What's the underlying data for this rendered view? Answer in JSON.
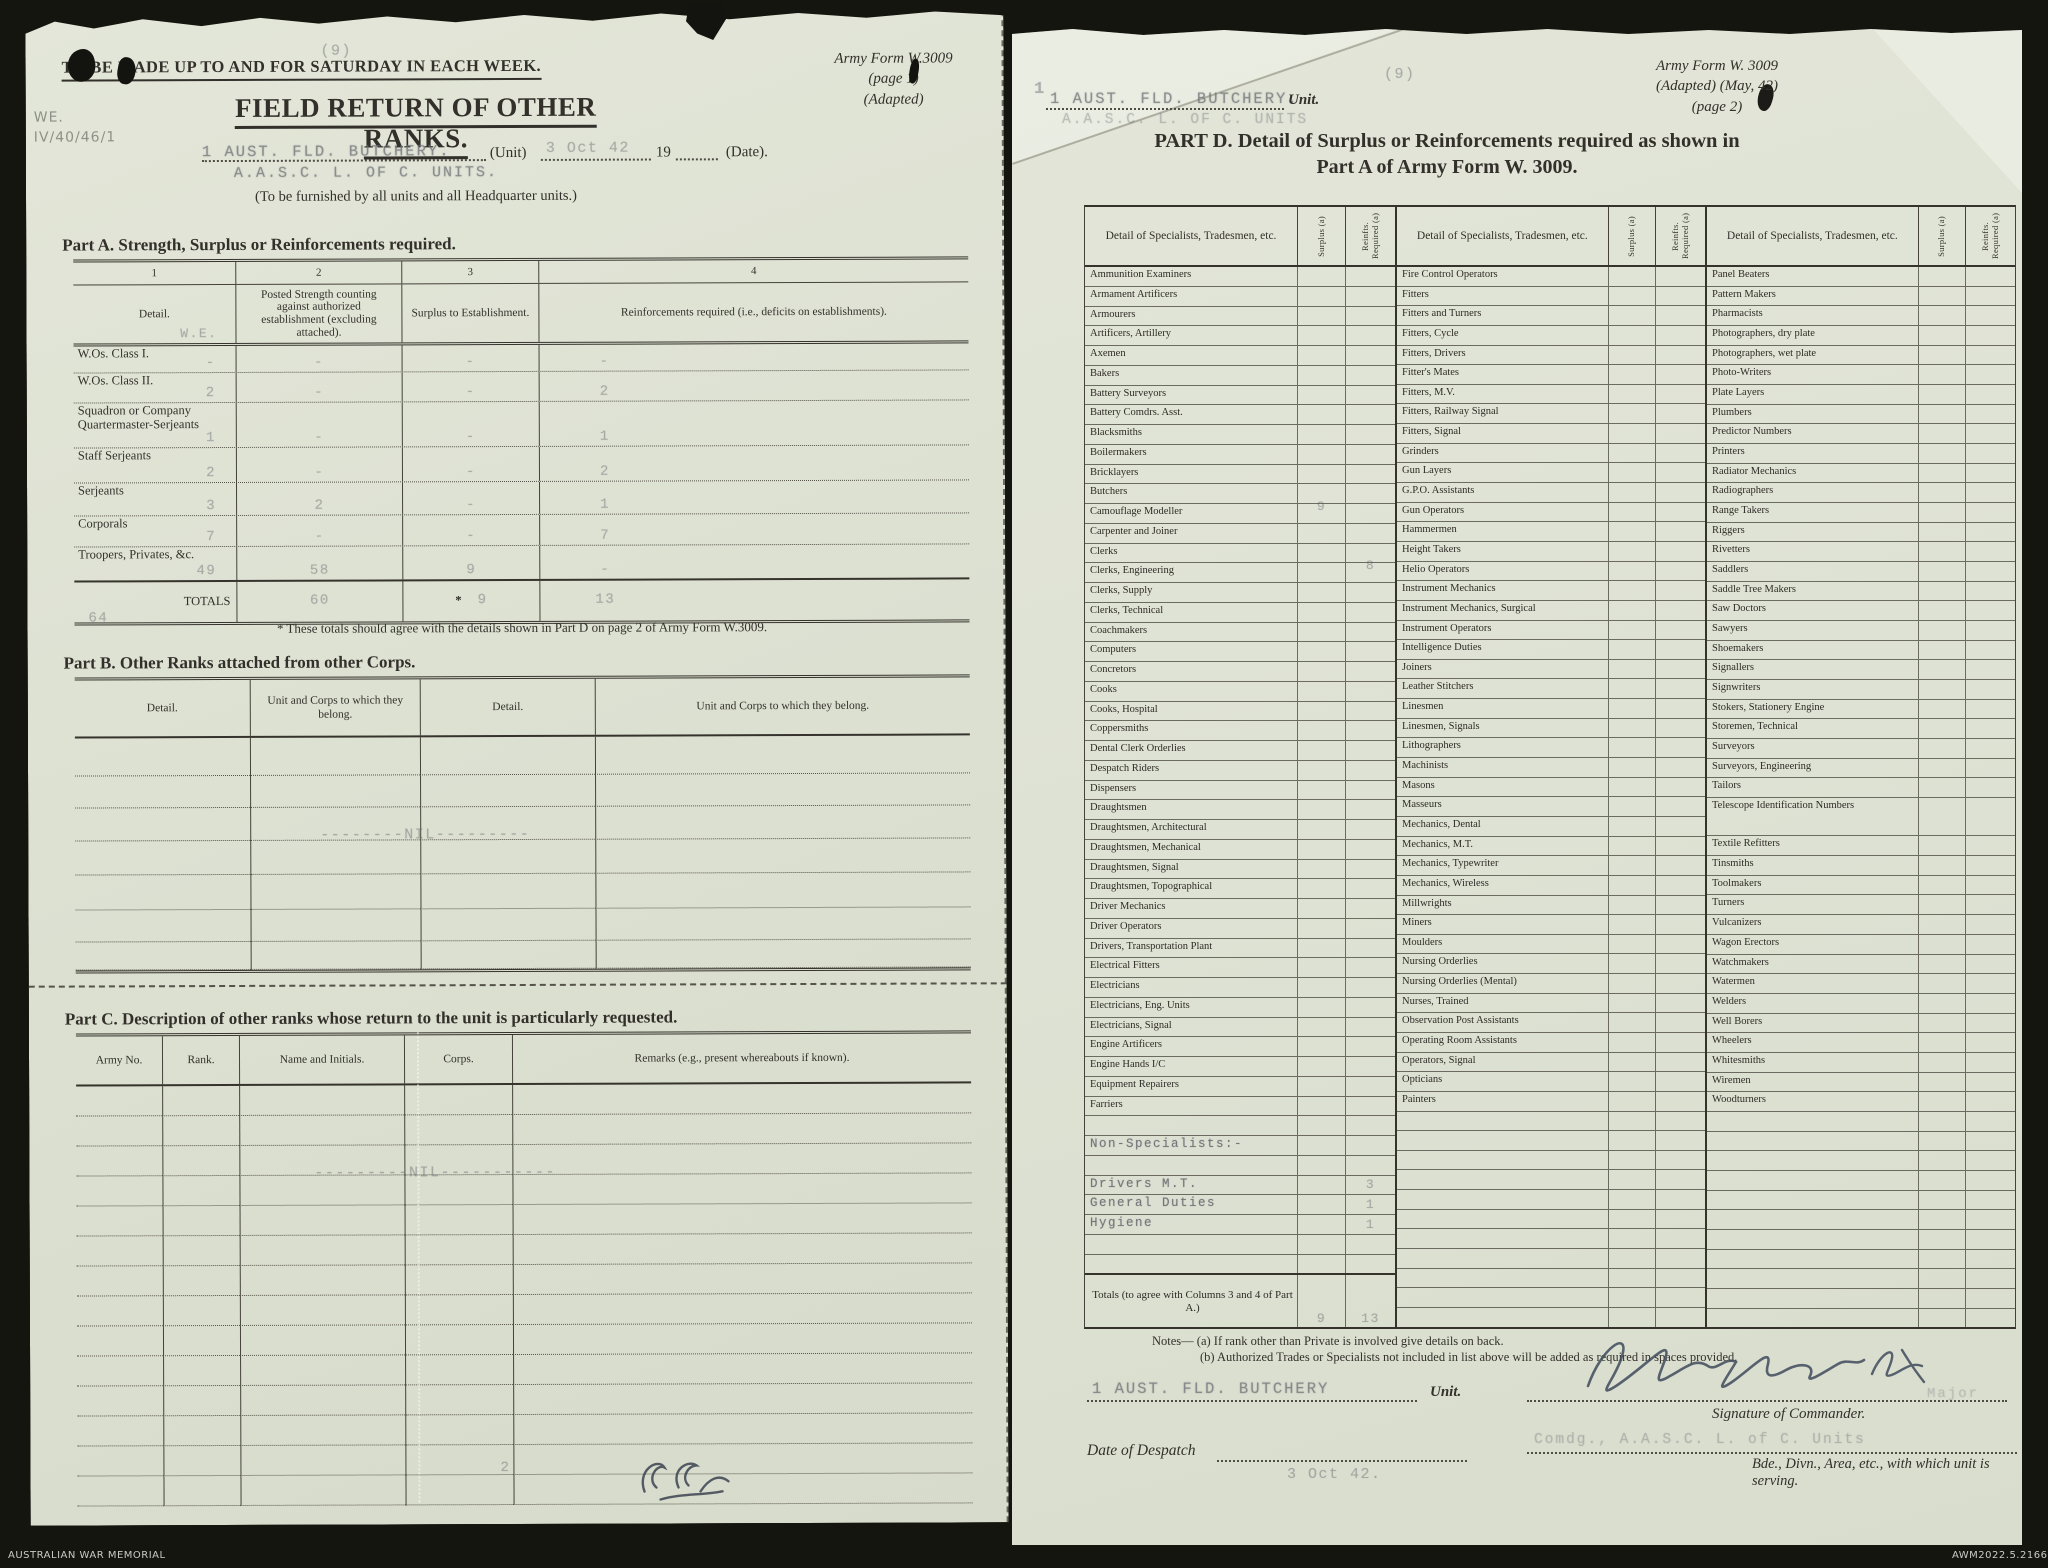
{
  "archive": {
    "label_left": "AUSTRALIAN WAR MEMORIAL",
    "label_right": "AWM2022.5.2166"
  },
  "left_page": {
    "page_number": "(9)",
    "top_instruction": "TO BE MADE UP TO AND FOR SATURDAY IN EACH WEEK.",
    "form_ref": {
      "line1": "Army Form W.3009",
      "line2": "(page 1)",
      "line3": "(Adapted)"
    },
    "pencil_note": {
      "line1": "WE.",
      "line2": "IV/40/46/1"
    },
    "title": "FIELD RETURN OF OTHER RANKS.",
    "unit_line": {
      "unit_stamp": "1 AUST. FLD. BUTCHERY.",
      "unit_stamp2": "A.A.S.C. L. OF C. UNITS.",
      "unit_label": "(Unit)",
      "date_value": "3 Oct 42",
      "year_prefix": "19",
      "date_label": "(Date)."
    },
    "furnish_note": "(To be furnished by all units and all Headquarter units.)",
    "part_a": {
      "title": "Part A.  Strength, Surplus or Reinforcements required.",
      "col_numbers": [
        "1",
        "2",
        "3",
        "4"
      ],
      "headers": [
        "Detail.",
        "Posted Strength counting against authorized establishment (excluding attached).",
        "Surplus to Establishment.",
        "Reinforcements required (i.e., deficits on establishments)."
      ],
      "we_note": "W.E.",
      "rows": [
        {
          "label": "W.Os. Class I.",
          "we": "-",
          "posted": "-",
          "surplus": "-",
          "reinf": "-"
        },
        {
          "label": "W.Os. Class II.",
          "we": "2",
          "posted": "-",
          "surplus": "-",
          "reinf": "2"
        },
        {
          "label": "Squadron or Company Quartermaster-Serjeants",
          "we": "1",
          "posted": "-",
          "surplus": "-",
          "reinf": "1"
        },
        {
          "label": "Staff Serjeants",
          "we": "2",
          "posted": "-",
          "surplus": "-",
          "reinf": "2"
        },
        {
          "label": "Serjeants",
          "we": "3",
          "posted": "2",
          "surplus": "-",
          "reinf": "1"
        },
        {
          "label": "Corporals",
          "we": "7",
          "posted": "-",
          "surplus": "-",
          "reinf": "7"
        },
        {
          "label": "Troopers, Privates, &c.",
          "we": "49",
          "posted": "58",
          "surplus": "9",
          "reinf": "-"
        }
      ],
      "totals": {
        "label": "TOTALS",
        "we": "64",
        "posted": "60",
        "asterisk": "*",
        "surplus": "9",
        "reinf": "13"
      },
      "footnote": "* These totals should agree with the details shown in Part D on page 2 of Army Form W.3009."
    },
    "part_b": {
      "title": "Part B.  Other Ranks attached from other Corps.",
      "headers": [
        "Detail.",
        "Unit and Corps to which they belong.",
        "Detail.",
        "Unit and Corps to which they belong."
      ],
      "nil_text": "--------NIL---------",
      "row_count": 7
    },
    "part_c": {
      "title": "Part C.  Description of other ranks whose return to the unit is particularly requested.",
      "headers": [
        "Army No.",
        "Rank.",
        "Name and Initials.",
        "Corps.",
        "Remarks (e.g., present whereabouts if known)."
      ],
      "nil_text": "---------NIL-----------",
      "row_count": 14
    }
  },
  "right_page": {
    "page_number": "(9)",
    "corner_mark": "1",
    "unit_stamp": "1 AUST. FLD. BUTCHERY.",
    "unit_stamp2": "A.A.S.C. L. OF C. UNITS",
    "unit_label": "Unit.",
    "form_ref": {
      "line1": "Army Form W. 3009",
      "line2": "(Adapted)  (May, 42)",
      "line3": "(page 2)"
    },
    "title_line1": "PART D.  Detail of Surplus or Reinforcements required as shown in",
    "title_line2": "Part A of Army Form W. 3009.",
    "part_d": {
      "group_header": "Detail of Specialists, Tradesmen, etc.",
      "surplus_header": "Surplus (a)",
      "reinfts_header": "Reinfts. Required (a)",
      "totals_label": "Totals (to agree with Columns 3 and 4 of Part A.)",
      "totals": {
        "surplus": "9",
        "reinfts": "13"
      },
      "groups": [
        {
          "rows": [
            "Ammunition Examiners",
            "Armament Artificers",
            "Armourers",
            "Artificers, Artillery",
            "Axemen",
            "Bakers",
            "Battery Surveyors",
            "Battery Comdrs. Asst.",
            "Blacksmiths",
            "Boilermakers",
            "Bricklayers",
            {
              "l": "Butchers",
              "s": "9",
              "off": 1
            },
            "Camouflage Modeller",
            "Carpenter and Joiner",
            {
              "l": "Clerks",
              "r": "8",
              "off": 1
            },
            "Clerks, Engineering",
            "Clerks, Supply",
            "Clerks, Technical",
            "Coachmakers",
            "Computers",
            "Concretors",
            "Cooks",
            "Cooks, Hospital",
            "Coppersmiths",
            "Dental Clerk Orderlies",
            "Despatch Riders",
            "Dispensers",
            "Draughtsmen",
            "Draughtsmen, Architectural",
            "Draughtsmen, Mechanical",
            "Draughtsmen, Signal",
            "Draughtsmen, Topographical",
            "Driver Mechanics",
            "Driver Operators",
            "Drivers, Transportation Plant",
            "Electrical Fitters",
            "Electricians",
            "Electricians, Eng. Units",
            "Electricians, Signal",
            "Engine Artificers",
            "Engine Hands I/C",
            "Equipment Repairers",
            "Farriers",
            "",
            {
              "l": "Non-Specialists:-",
              "t": 1
            },
            "",
            {
              "l": "Drivers M.T.",
              "t": 1,
              "r": "3"
            },
            {
              "l": "General Duties",
              "t": 1,
              "r": "1"
            },
            {
              "l": "Hygiene",
              "t": 1,
              "r": "1"
            },
            "",
            ""
          ]
        },
        {
          "rows": [
            "Fire Control Operators",
            "Fitters",
            "Fitters and Turners",
            "Fitters, Cycle",
            "Fitters, Drivers",
            "Fitter's Mates",
            "Fitters, M.V.",
            "Fitters, Railway Signal",
            "Fitters, Signal",
            "Grinders",
            "Gun Layers",
            "G.P.O. Assistants",
            "Gun Operators",
            "Hammermen",
            "Height Takers",
            "Helio Operators",
            "Instrument Mechanics",
            "Instrument Mechanics, Surgical",
            "Instrument Operators",
            "Intelligence Duties",
            "Joiners",
            "Leather Stitchers",
            "Linesmen",
            "Linesmen, Signals",
            "Lithographers",
            "Machinists",
            "Masons",
            "Masseurs",
            "Mechanics, Dental",
            "Mechanics, M.T.",
            "Mechanics, Typewriter",
            "Mechanics, Wireless",
            "Millwrights",
            "Miners",
            "Moulders",
            "Nursing Orderlies",
            "Nursing Orderlies (Mental)",
            "Nurses, Trained",
            "Observation Post Assistants",
            "Operating Room Assistants",
            "Operators, Signal",
            "Opticians",
            "Painters",
            "",
            "",
            "",
            "",
            "",
            "",
            "",
            "",
            "",
            "",
            ""
          ]
        },
        {
          "rows": [
            "Panel Beaters",
            "Pattern Makers",
            "Pharmacists",
            "Photographers, dry plate",
            "Photographers, wet plate",
            "Photo-Writers",
            "Plate Layers",
            "Plumbers",
            "Predictor Numbers",
            "Printers",
            "Radiator Mechanics",
            "Radiographers",
            "Range Takers",
            "Riggers",
            "Rivetters",
            "Saddlers",
            "Saddle Tree Makers",
            "Saw Doctors",
            "Sawyers",
            "Shoemakers",
            "Signallers",
            "Signwriters",
            "Stokers, Stationery Engine",
            "Storemen, Technical",
            "Surveyors",
            "Surveyors, Engineering",
            "Tailors",
            {
              "l": "Telescope Identification Numbers",
              "tall": 1
            },
            "Textile Refitters",
            "Tinsmiths",
            "Toolmakers",
            "Turners",
            "Vulcanizers",
            "Wagon Erectors",
            "Watchmakers",
            "Watermen",
            "Welders",
            "Well Borers",
            "Wheelers",
            "Whitesmiths",
            "Wiremen",
            "Woodturners",
            "",
            "",
            "",
            "",
            "",
            "",
            "",
            "",
            "",
            "",
            ""
          ]
        }
      ]
    },
    "notes_line1": "Notes— (a) If rank other than Private is involved give details on back.",
    "notes_line2": "(b) Authorized Trades or Specialists not included in list above will be added as required in spaces provided.",
    "footer": {
      "unit_stamp": "1 AUST. FLD. BUTCHERY",
      "unit_label": "Unit.",
      "signature_label": "Signature of Commander.",
      "rank_stamp": "Major",
      "despatch_label": "Date of Despatch",
      "despatch_date": "3 Oct 42.",
      "comdg_stamp": "Comdg., A.A.S.C. L. of C. Units",
      "serving_label": "Bde., Divn., Area, etc., with which unit is serving."
    }
  }
}
